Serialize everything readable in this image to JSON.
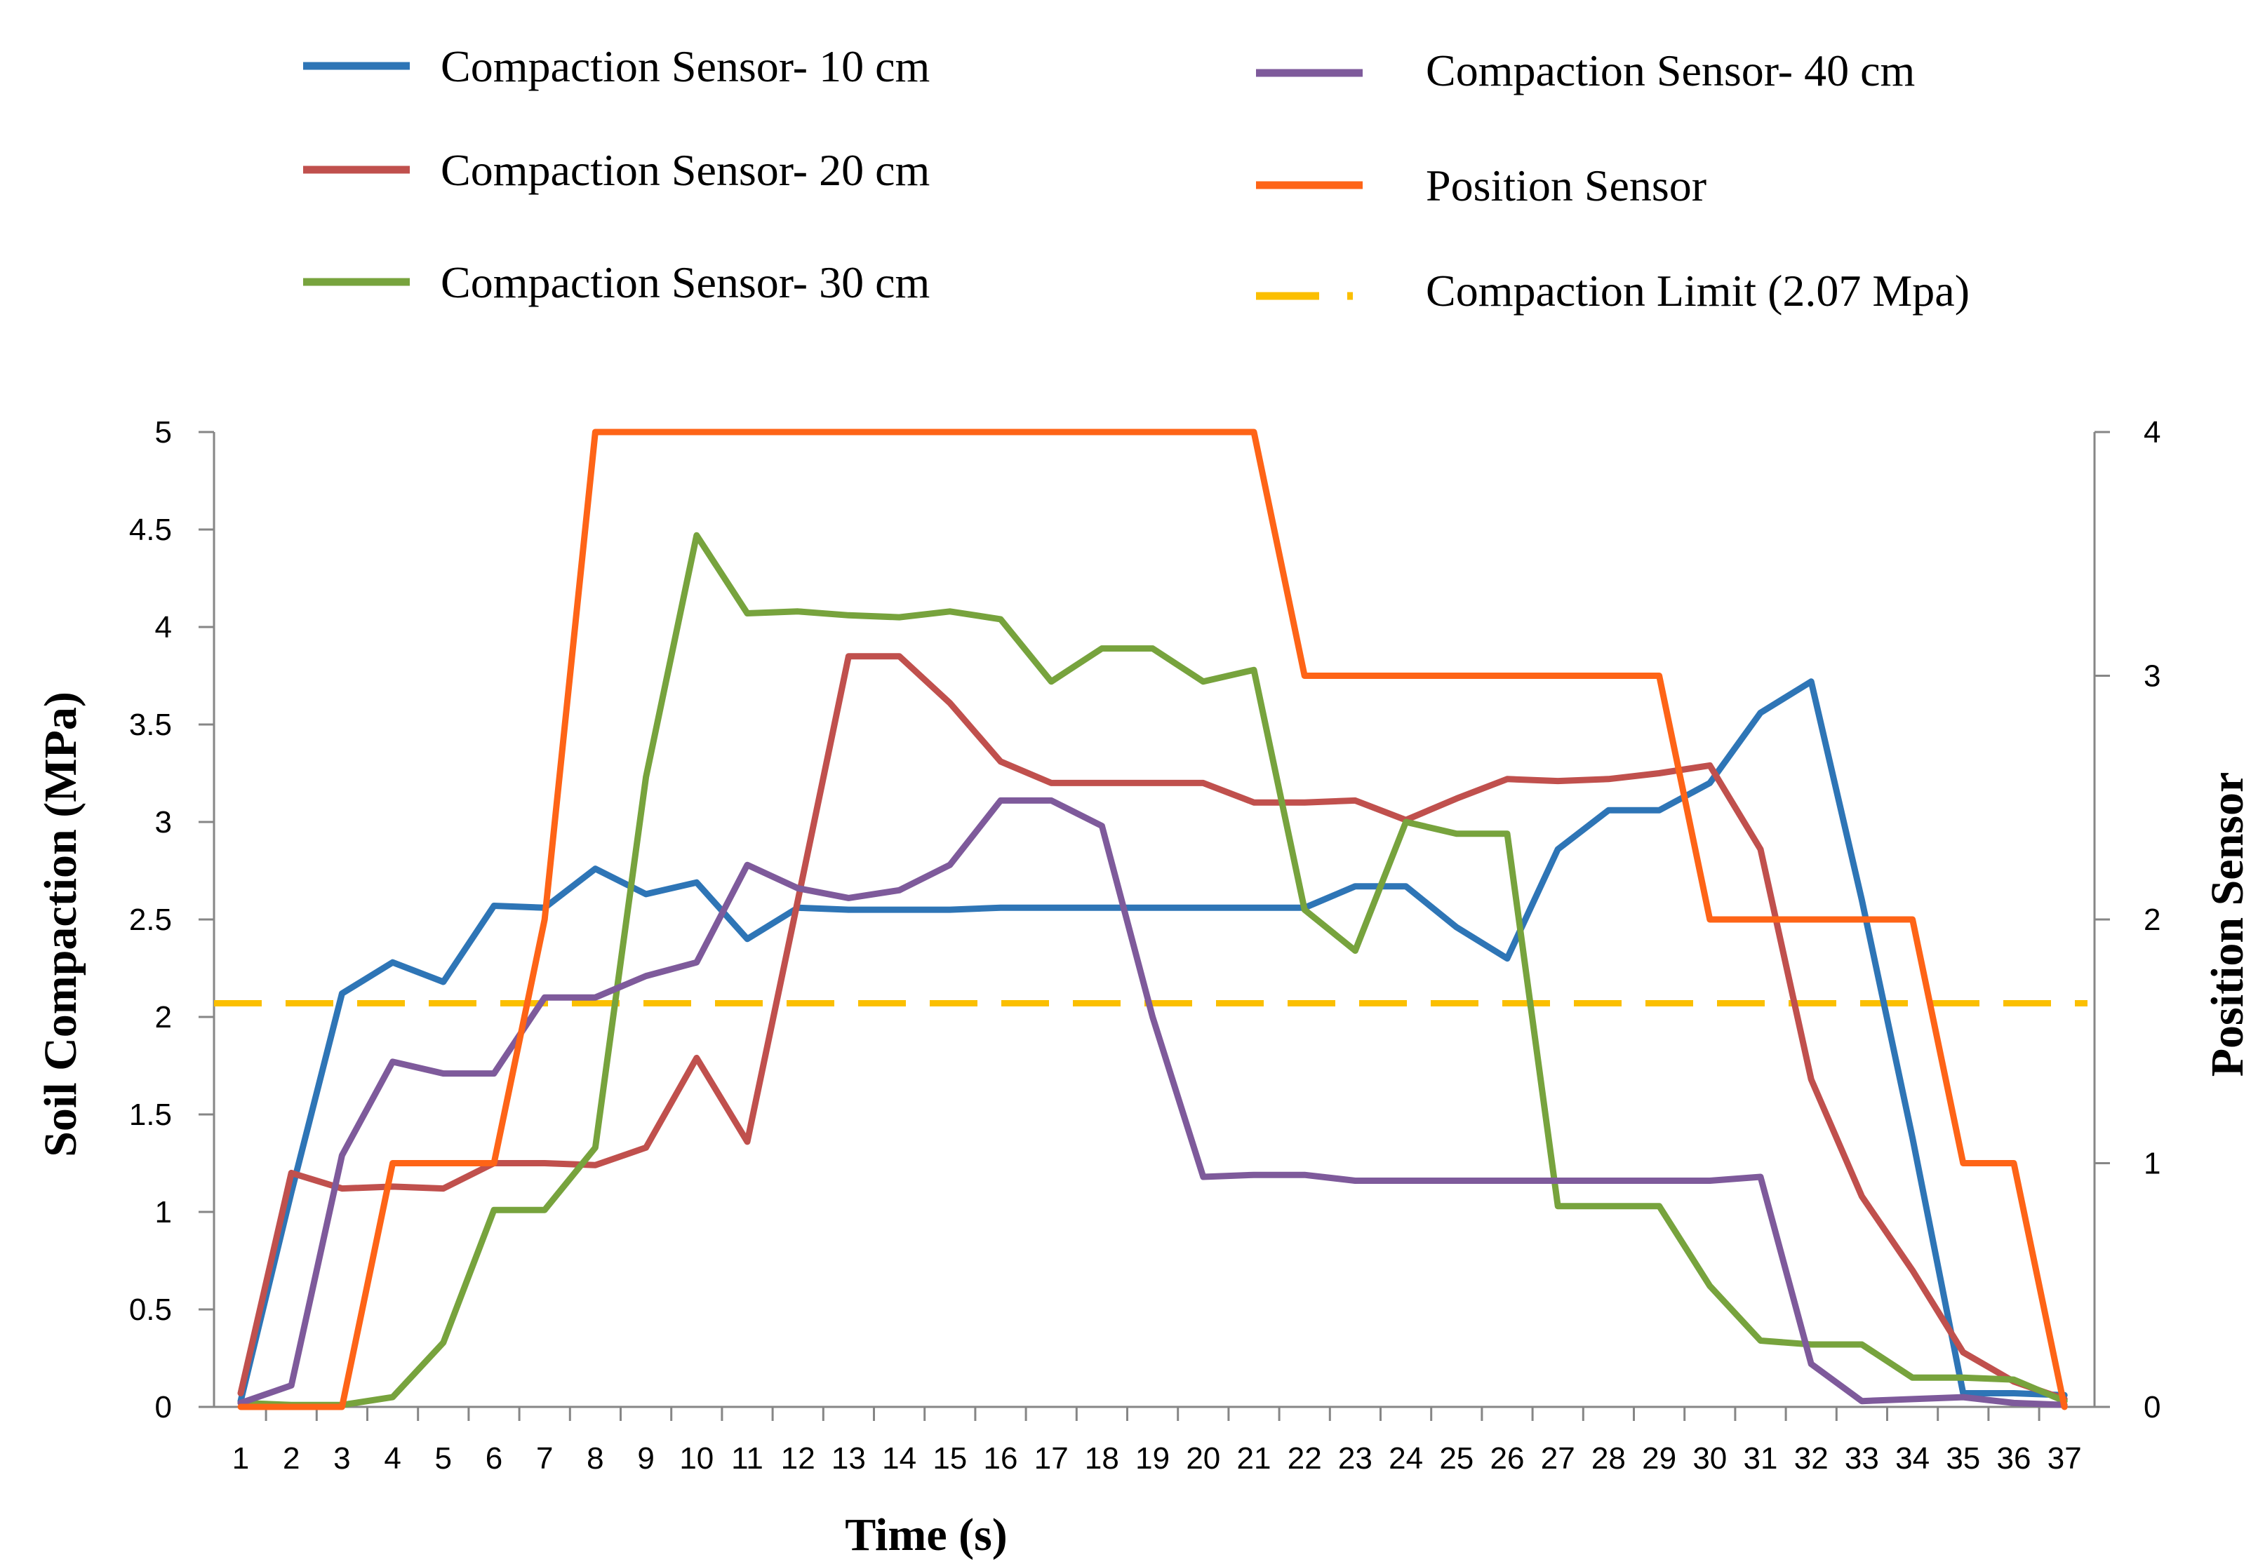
{
  "chart_data": {
    "type": "line",
    "title": "",
    "xlabel": "Time (s)",
    "ylabel": "Soil Compaction (MPa)",
    "y2label": "Position Sensor",
    "x": [
      1,
      2,
      3,
      4,
      5,
      6,
      7,
      8,
      9,
      10,
      11,
      12,
      13,
      14,
      15,
      16,
      17,
      18,
      19,
      20,
      21,
      22,
      23,
      24,
      25,
      26,
      27,
      28,
      29,
      30,
      31,
      32,
      33,
      34,
      35,
      36,
      37
    ],
    "x_tick_labels": [
      "1",
      "2",
      "3",
      "4",
      "5",
      "6",
      "7",
      "8",
      "9",
      "10",
      "11",
      "12",
      "13",
      "14",
      "15",
      "16",
      "17",
      "18",
      "19",
      "20",
      "21",
      "22",
      "23",
      "24",
      "25",
      "26",
      "27",
      "28",
      "29",
      "30",
      "31",
      "32",
      "33",
      "34",
      "35",
      "36",
      "37"
    ],
    "ylim": [
      0,
      5
    ],
    "y_ticks": [
      0,
      0.5,
      1,
      1.5,
      2,
      2.5,
      3,
      3.5,
      4,
      4.5,
      5
    ],
    "y_tick_labels": [
      "0",
      "0.5",
      "1",
      "1.5",
      "2",
      "2.5",
      "3",
      "3.5",
      "4",
      "4.5",
      "5"
    ],
    "y2lim": [
      0,
      4
    ],
    "y2_ticks": [
      0,
      1,
      2,
      3,
      4
    ],
    "y2_tick_labels": [
      "0",
      "1",
      "2",
      "3",
      "4"
    ],
    "grid": false,
    "legend_position": "top",
    "series": [
      {
        "name": "Compaction Sensor- 10 cm",
        "color": "#2e75b6",
        "axis": "left",
        "dash": "solid",
        "values": [
          0.03,
          1.1,
          2.12,
          2.28,
          2.18,
          2.57,
          2.56,
          2.76,
          2.63,
          2.69,
          2.4,
          2.56,
          2.55,
          2.55,
          2.55,
          2.56,
          2.56,
          2.56,
          2.56,
          2.56,
          2.56,
          2.56,
          2.67,
          2.67,
          2.46,
          2.3,
          2.86,
          3.06,
          3.06,
          3.2,
          3.56,
          3.72,
          2.6,
          1.38,
          0.07,
          0.07,
          0.06
        ]
      },
      {
        "name": "Compaction Sensor- 20 cm",
        "color": "#c0504d",
        "axis": "left",
        "dash": "solid",
        "values": [
          0.07,
          1.2,
          1.12,
          1.13,
          1.12,
          1.25,
          1.25,
          1.24,
          1.33,
          1.79,
          1.36,
          2.6,
          3.85,
          3.85,
          3.61,
          3.31,
          3.2,
          3.2,
          3.2,
          3.2,
          3.1,
          3.1,
          3.11,
          3.01,
          3.12,
          3.22,
          3.21,
          3.22,
          3.25,
          3.29,
          2.86,
          1.68,
          1.08,
          0.7,
          0.28,
          0.13,
          0.04
        ]
      },
      {
        "name": "Compaction Sensor- 30 cm",
        "color": "#77a33d",
        "axis": "left",
        "dash": "solid",
        "values": [
          0.02,
          0.01,
          0.01,
          0.05,
          0.33,
          1.01,
          1.01,
          1.33,
          3.23,
          4.47,
          4.07,
          4.08,
          4.06,
          4.05,
          4.08,
          4.04,
          3.72,
          3.89,
          3.89,
          3.72,
          3.78,
          2.55,
          2.34,
          3.0,
          2.94,
          2.94,
          1.03,
          1.03,
          1.03,
          0.62,
          0.34,
          0.32,
          0.32,
          0.15,
          0.15,
          0.14,
          0.03
        ]
      },
      {
        "name": "Compaction Sensor- 40 cm",
        "color": "#7e5a9b",
        "axis": "left",
        "dash": "solid",
        "values": [
          0.02,
          0.11,
          1.29,
          1.77,
          1.71,
          1.71,
          2.1,
          2.1,
          2.21,
          2.28,
          2.78,
          2.66,
          2.61,
          2.65,
          2.78,
          3.11,
          3.11,
          2.98,
          2.0,
          1.18,
          1.19,
          1.19,
          1.16,
          1.16,
          1.16,
          1.16,
          1.16,
          1.16,
          1.16,
          1.16,
          1.18,
          0.22,
          0.03,
          0.04,
          0.05,
          0.02,
          0.01
        ]
      },
      {
        "name": "Position Sensor",
        "color": "#fe6417",
        "axis": "right",
        "dash": "solid",
        "values": [
          0,
          0,
          0,
          1,
          1,
          1,
          2,
          4,
          4,
          4,
          4,
          4,
          4,
          4,
          4,
          4,
          4,
          4,
          4,
          4,
          4,
          3,
          3,
          3,
          3,
          3,
          3,
          3,
          3,
          2,
          2,
          2,
          2,
          2,
          1,
          1,
          0
        ]
      }
    ],
    "reference_lines": [
      {
        "name": "Compaction Limit (2.07 Mpa)",
        "color": "#fbbf00",
        "axis": "left",
        "dash": "dashed",
        "value": 2.07
      }
    ]
  }
}
